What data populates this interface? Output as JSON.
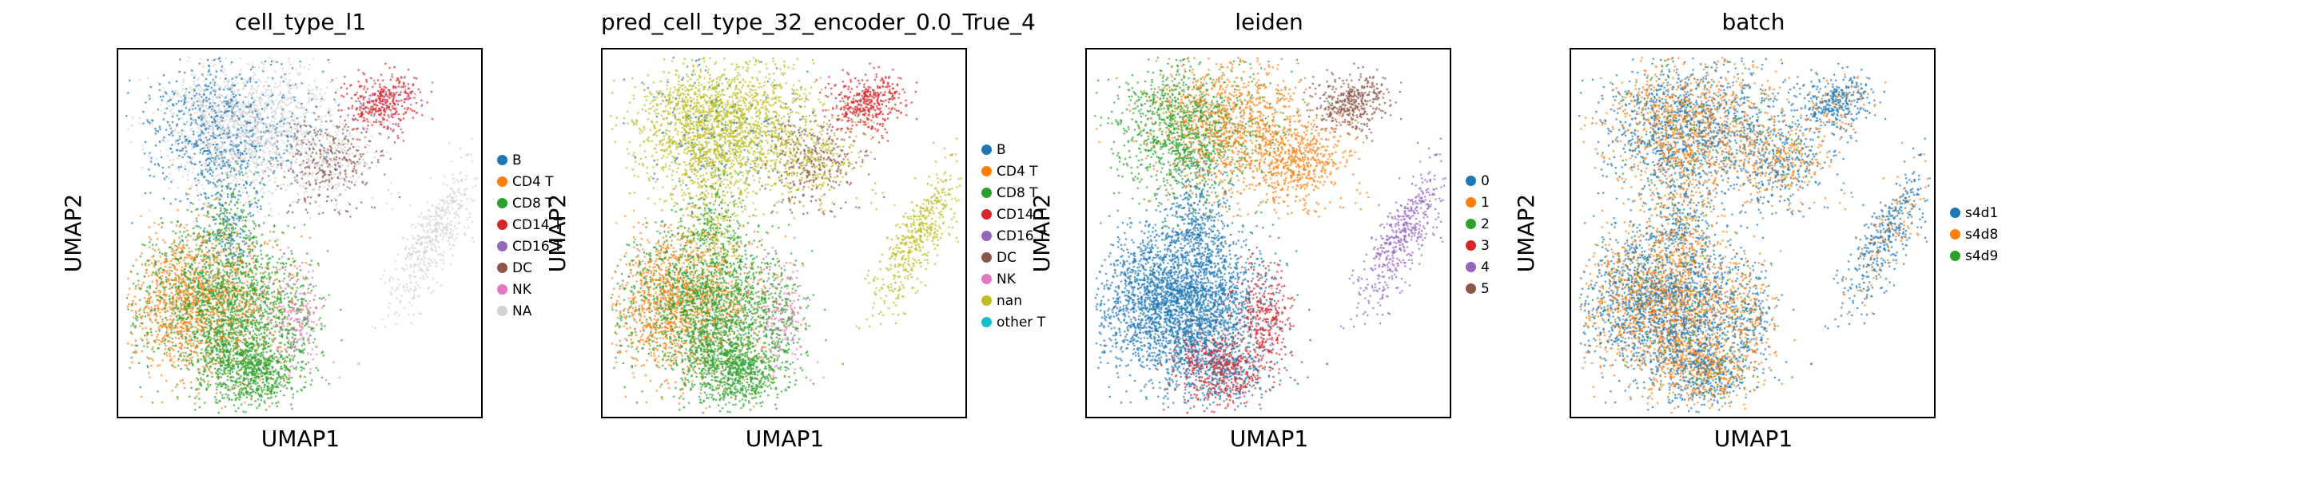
{
  "chart_data": [
    {
      "type": "scatter",
      "title": "cell_type_l1",
      "xlabel": "UMAP1",
      "ylabel": "UMAP2",
      "grid": false,
      "legend_placement": "right",
      "legend": [
        {
          "label": "B",
          "color": "#1f77b4"
        },
        {
          "label": "CD4 T",
          "color": "#ff7f0e"
        },
        {
          "label": "CD8 T",
          "color": "#2ca02c"
        },
        {
          "label": "CD14 T",
          "color": "#d62728"
        },
        {
          "label": "CD16 T",
          "color": "#9467bd"
        },
        {
          "label": "DC",
          "color": "#8c564b"
        },
        {
          "label": "NK",
          "color": "#e377c2"
        },
        {
          "label": "NA",
          "color": "#d3d3d3"
        }
      ]
    },
    {
      "type": "scatter",
      "title": "pred_cell_type_32_encoder_0.0_True_4",
      "xlabel": "UMAP1",
      "ylabel": "UMAP2",
      "grid": false,
      "legend_placement": "right",
      "legend": [
        {
          "label": "B",
          "color": "#1f77b4"
        },
        {
          "label": "CD4 T",
          "color": "#ff7f0e"
        },
        {
          "label": "CD8 T",
          "color": "#2ca02c"
        },
        {
          "label": "CD14 T",
          "color": "#d62728"
        },
        {
          "label": "CD16 T",
          "color": "#9467bd"
        },
        {
          "label": "DC",
          "color": "#8c564b"
        },
        {
          "label": "NK",
          "color": "#e377c2"
        },
        {
          "label": "nan",
          "color": "#bcbd22"
        },
        {
          "label": "other T",
          "color": "#17becf"
        }
      ]
    },
    {
      "type": "scatter",
      "title": "leiden",
      "xlabel": "UMAP1",
      "ylabel": "UMAP2",
      "grid": false,
      "legend_placement": "right",
      "legend": [
        {
          "label": "0",
          "color": "#1f77b4"
        },
        {
          "label": "1",
          "color": "#ff7f0e"
        },
        {
          "label": "2",
          "color": "#2ca02c"
        },
        {
          "label": "3",
          "color": "#d62728"
        },
        {
          "label": "4",
          "color": "#9467bd"
        },
        {
          "label": "5",
          "color": "#8c564b"
        }
      ]
    },
    {
      "type": "scatter",
      "title": "batch",
      "xlabel": "UMAP1",
      "ylabel": "UMAP2",
      "grid": false,
      "legend_placement": "right",
      "legend": [
        {
          "label": "s4d1",
          "color": "#1f77b4"
        },
        {
          "label": "s4d8",
          "color": "#ff7f0e"
        },
        {
          "label": "s4d9",
          "color": "#2ca02c"
        }
      ]
    }
  ]
}
